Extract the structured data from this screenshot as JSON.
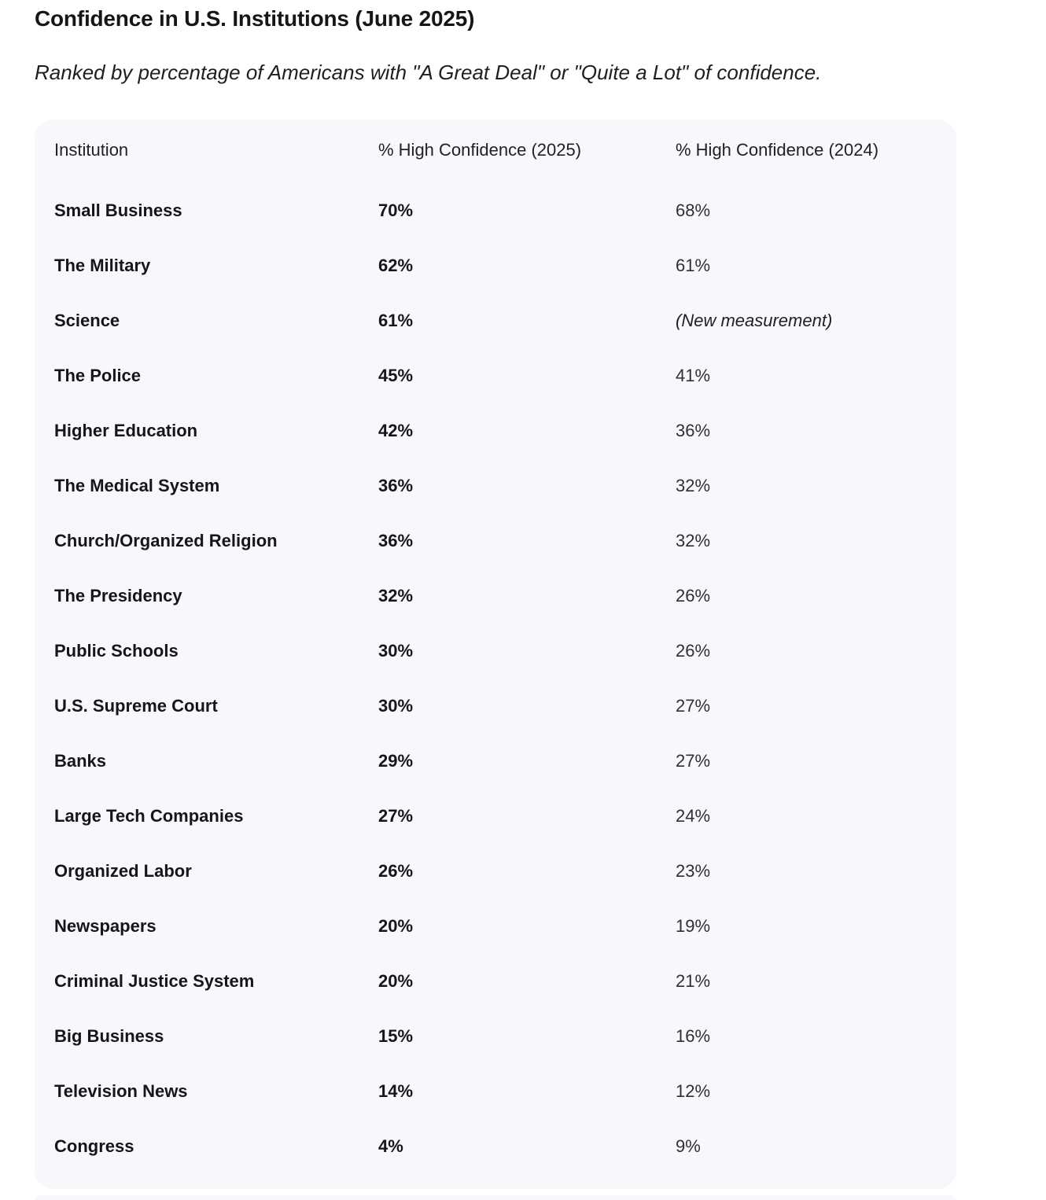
{
  "page": {
    "title": "Confidence in U.S. Institutions (June 2025)",
    "subtitle": "Ranked by percentage of Americans with \"A Great Deal\" or \"Quite a Lot\" of confidence."
  },
  "colors": {
    "card_bg": "#f6f8fb",
    "text_primary": "#161619",
    "text_secondary": "#2e3033"
  },
  "chart_data": {
    "type": "table",
    "title": "Confidence in U.S. Institutions (June 2025)",
    "subtitle": "Ranked by percentage of Americans with \"A Great Deal\" or \"Quite a Lot\" of confidence.",
    "columns": [
      "Institution",
      "% High Confidence (2025)",
      "% High Confidence (2024)"
    ],
    "rows": [
      [
        "Small Business",
        "70%",
        "68%"
      ],
      [
        "The Military",
        "62%",
        "61%"
      ],
      [
        "Science",
        "61%",
        "(New measurement)"
      ],
      [
        "The Police",
        "45%",
        "41%"
      ],
      [
        "Higher Education",
        "42%",
        "36%"
      ],
      [
        "The Medical System",
        "36%",
        "32%"
      ],
      [
        "Church/Organized Religion",
        "36%",
        "32%"
      ],
      [
        "The Presidency",
        "32%",
        "26%"
      ],
      [
        "Public Schools",
        "30%",
        "26%"
      ],
      [
        "U.S. Supreme Court",
        "30%",
        "27%"
      ],
      [
        "Banks",
        "29%",
        "27%"
      ],
      [
        "Large Tech Companies",
        "27%",
        "24%"
      ],
      [
        "Organized Labor",
        "26%",
        "23%"
      ],
      [
        "Newspapers",
        "20%",
        "19%"
      ],
      [
        "Criminal Justice System",
        "20%",
        "21%"
      ],
      [
        "Big Business",
        "15%",
        "16%"
      ],
      [
        "Television News",
        "14%",
        "12%"
      ],
      [
        "Congress",
        "4%",
        "9%"
      ]
    ],
    "values_2025": [
      70,
      62,
      61,
      45,
      42,
      36,
      36,
      32,
      30,
      30,
      29,
      27,
      26,
      20,
      20,
      15,
      14,
      4
    ],
    "values_2024": [
      68,
      61,
      null,
      41,
      36,
      32,
      32,
      26,
      26,
      27,
      27,
      24,
      23,
      19,
      21,
      16,
      12,
      9
    ],
    "notes": {
      "new_measurement_label": "(New measurement)"
    }
  }
}
